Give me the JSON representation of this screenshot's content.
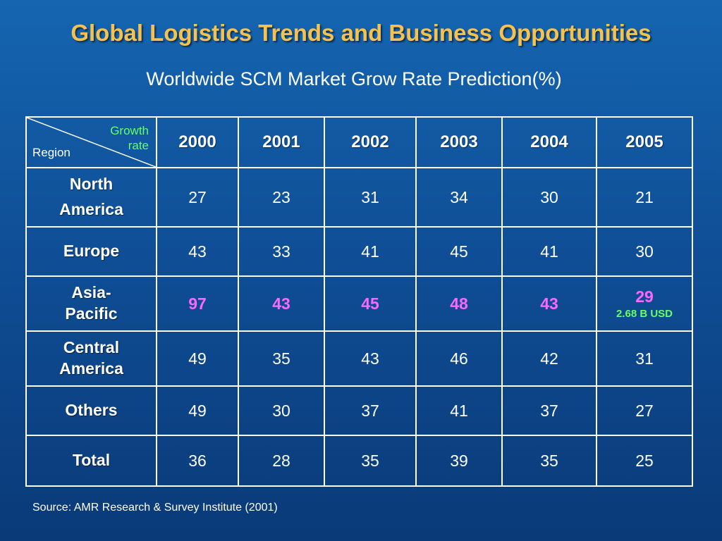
{
  "title": "Global Logistics Trends and Business Opportunities",
  "subtitle": "Worldwide SCM Market Grow Rate Prediction(%)",
  "table": {
    "corner": {
      "top_right_line1": "Growth",
      "top_right_line2": "rate",
      "bottom_left": "Region"
    },
    "years": [
      "2000",
      "2001",
      "2002",
      "2003",
      "2004",
      "2005"
    ],
    "rows": [
      {
        "region_line1": "North",
        "region_line2": "America",
        "values": [
          "27",
          "23",
          "31",
          "34",
          "30",
          "21"
        ]
      },
      {
        "region_line1": "Europe",
        "region_line2": "",
        "values": [
          "43",
          "33",
          "41",
          "45",
          "41",
          "30"
        ]
      },
      {
        "region_line1": "Asia-",
        "region_line2": "Pacific",
        "values": [
          "97",
          "43",
          "45",
          "48",
          "43",
          "29"
        ],
        "note_2005": "2.68 B USD"
      },
      {
        "region_line1": "Central",
        "region_line2": "America",
        "values": [
          "49",
          "35",
          "43",
          "46",
          "42",
          "31"
        ]
      },
      {
        "region_line1": "Others",
        "region_line2": "",
        "values": [
          "49",
          "30",
          "37",
          "41",
          "37",
          "27"
        ]
      },
      {
        "region_line1": "Total",
        "region_line2": "",
        "values": [
          "36",
          "28",
          "35",
          "39",
          "35",
          "25"
        ]
      }
    ]
  },
  "source": "Source: AMR Research & Survey Institute (2001)",
  "colors": {
    "title": "#f5c24f",
    "header_text": "#ffff44",
    "highlight_row": "#ff66ff",
    "note": "#66ff66",
    "background": "#1565b0"
  }
}
